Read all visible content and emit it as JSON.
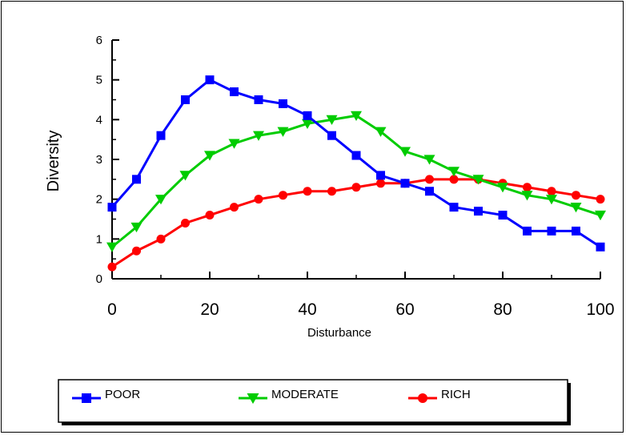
{
  "chart_data": {
    "type": "line",
    "title": "",
    "xlabel": "Disturbance",
    "ylabel": "Diversity",
    "xlim": [
      0,
      100
    ],
    "ylim": [
      0,
      6
    ],
    "x_ticks": [
      "0",
      "20",
      "40",
      "60",
      "80",
      "100"
    ],
    "y_ticks": [
      "0",
      "1",
      "2",
      "3",
      "4",
      "5",
      "6"
    ],
    "grid": false,
    "legend_position": "bottom",
    "x": [
      0,
      5,
      10,
      15,
      20,
      25,
      30,
      35,
      40,
      45,
      50,
      55,
      60,
      65,
      70,
      75,
      80,
      85,
      90,
      95,
      100
    ],
    "series": [
      {
        "name": "POOR",
        "color": "#0000ff",
        "marker": "square",
        "values": [
          1.8,
          2.5,
          3.6,
          4.5,
          5.0,
          4.7,
          4.5,
          4.4,
          4.1,
          3.6,
          3.1,
          2.6,
          2.4,
          2.2,
          1.8,
          1.7,
          1.6,
          1.2,
          1.2,
          1.2,
          0.8
        ]
      },
      {
        "name": "MODERATE",
        "color": "#00cc00",
        "marker": "triangle-down",
        "values": [
          0.8,
          1.3,
          2.0,
          2.6,
          3.1,
          3.4,
          3.6,
          3.7,
          3.9,
          4.0,
          4.1,
          3.7,
          3.2,
          3.0,
          2.7,
          2.5,
          2.3,
          2.1,
          2.0,
          1.8,
          1.6
        ]
      },
      {
        "name": "RICH",
        "color": "#ff0000",
        "marker": "circle",
        "values": [
          0.3,
          0.7,
          1.0,
          1.4,
          1.6,
          1.8,
          2.0,
          2.1,
          2.2,
          2.2,
          2.3,
          2.4,
          2.4,
          2.5,
          2.5,
          2.5,
          2.4,
          2.3,
          2.2,
          2.1,
          2.0
        ]
      }
    ]
  }
}
